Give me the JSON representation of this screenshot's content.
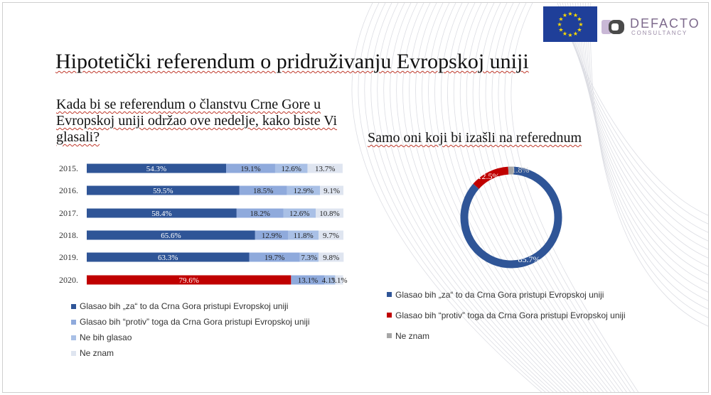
{
  "header": {
    "logo_text": "DEFACTO",
    "logo_subtext": "CONSULTANCY"
  },
  "page_title": "Hipotetički referendum o pridruživanju Evropskoj uniji",
  "question": "Kada bi se referendum o članstvu Crne Gore u Evropskoj uniji održao ove nedelje, kako biste Vi glasali?",
  "right_title": "Samo oni koji bi izašli na referednum",
  "colors": {
    "za": "#2f5597",
    "protiv": "#c00000",
    "ne_bih_glasao": "#8faadc",
    "ne_znam": "#d9e1f2",
    "donut_ne_znam": "#a6a6a6"
  },
  "chart_data": [
    {
      "type": "bar",
      "orientation": "horizontal",
      "stacked": true,
      "categories": [
        "2015.",
        "2016.",
        "2017.",
        "2018.",
        "2019.",
        "2020."
      ],
      "series": [
        {
          "name": "Glasao bih „za“ to da Crna Gora pristupi Evropskoj uniji",
          "values": [
            54.3,
            59.5,
            58.4,
            65.6,
            63.3,
            null
          ],
          "labels": [
            "54.3%",
            "59.5%",
            "58.4%",
            "65.6%",
            "63.3%",
            ""
          ]
        },
        {
          "name": "Glasao bih “protiv” toga da Crna Gora pristupi Evropskoj uniji",
          "values": [
            19.1,
            18.5,
            18.2,
            12.9,
            19.7,
            null
          ],
          "labels": [
            "19.1%",
            "18.5%",
            "18.2%",
            "12.9%",
            "19.7%",
            ""
          ]
        },
        {
          "name": "Ne bih glasao",
          "values": [
            12.6,
            12.9,
            12.6,
            11.8,
            7.3,
            null
          ],
          "labels": [
            "12.6%",
            "12.9%",
            "12.6%",
            "11.8%",
            "7.3%",
            ""
          ]
        },
        {
          "name": "Ne znam",
          "values": [
            13.7,
            9.1,
            10.8,
            9.7,
            9.8,
            null
          ],
          "labels": [
            "13.7%",
            "9.1%",
            "10.8%",
            "9.7%",
            "9.8%",
            ""
          ]
        }
      ],
      "row_2020": {
        "values": [
          79.6,
          13.1,
          4.1,
          3.1
        ],
        "labels": [
          "79.6%",
          "13.1%",
          "4.1%",
          "3.1%"
        ],
        "colors_key": [
          "protiv",
          "ne_bih_glasao",
          "ne_znam",
          "ne_znam"
        ]
      },
      "xlim": [
        0,
        100
      ],
      "legend": "bottom"
    },
    {
      "type": "pie",
      "donut": true,
      "title": "Samo oni koji bi izašli na referednum",
      "labels": [
        "Glasao bih „za“ to da Crna Gora pristupi Evropskoj uniji",
        "Glasao bih “protiv” toga da Crna Gora pristupi Evropskoj uniji",
        "Ne znam"
      ],
      "values": [
        85.7,
        12.5,
        1.8
      ],
      "value_labels": [
        "85.7%",
        "12.5%",
        "1.8%"
      ],
      "legend": "bottom"
    }
  ]
}
